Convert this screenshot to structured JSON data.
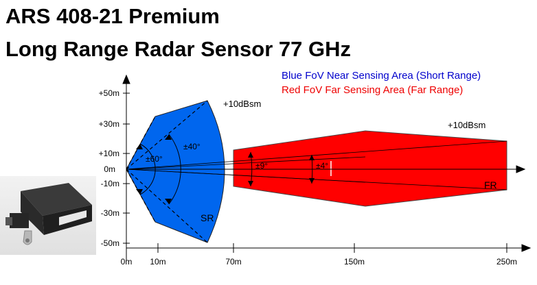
{
  "header": {
    "line1": "ARS 408-21 Premium",
    "line2": "Long Range Radar Sensor 77 GHz"
  },
  "legend": {
    "near": {
      "text": "Blue FoV Near Sensing Area (Short Range)",
      "color": "#0000cc"
    },
    "far": {
      "text": "Red  FoV Far Sensing Area (Far Range)",
      "color": "#ee0000"
    }
  },
  "zones": {
    "short": {
      "label": "SR",
      "rcs": "+10dBsm",
      "color": "#0066ee"
    },
    "far": {
      "label": "FR",
      "rcs": "+10dBsm",
      "color": "#ff0000"
    }
  },
  "angles": {
    "sr_inner": "±60°",
    "sr_outer": "±40°",
    "fr_inner": "±9°",
    "fr_outer": "±4°"
  },
  "axes": {
    "y_ticks": [
      "+50m",
      "+30m",
      "+10m",
      "0m",
      "-10m",
      "-30m",
      "-50m"
    ],
    "x_ticks": [
      "0m",
      "10m",
      "70m",
      "150m",
      "250m"
    ]
  },
  "photo": {
    "icon": "radar-sensor-unit-icon"
  }
}
